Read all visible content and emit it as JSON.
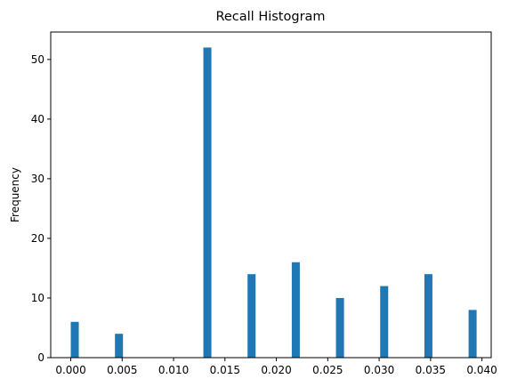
{
  "chart_data": {
    "type": "bar",
    "title": "Recall Histogram",
    "xlabel": "",
    "ylabel": "Frequency",
    "xlim": [
      -0.00195,
      0.0409
    ],
    "ylim": [
      0,
      54.6
    ],
    "x_ticks": [
      "0.000",
      "0.005",
      "0.010",
      "0.015",
      "0.020",
      "0.025",
      "0.030",
      "0.035",
      "0.040"
    ],
    "x_tick_values": [
      0,
      0.005,
      0.01,
      0.015,
      0.02,
      0.025,
      0.03,
      0.035,
      0.04
    ],
    "y_ticks": [
      "0",
      "10",
      "20",
      "30",
      "40",
      "50"
    ],
    "y_tick_values": [
      0,
      10,
      20,
      30,
      40,
      50
    ],
    "bin_width": 0.00078,
    "bins": [
      {
        "x": 0.0,
        "value": 6
      },
      {
        "x": 0.0043,
        "value": 4
      },
      {
        "x": 0.0129,
        "value": 52
      },
      {
        "x": 0.0172,
        "value": 14
      },
      {
        "x": 0.0215,
        "value": 16
      },
      {
        "x": 0.0258,
        "value": 10
      },
      {
        "x": 0.0301,
        "value": 12
      },
      {
        "x": 0.0344,
        "value": 14
      },
      {
        "x": 0.0387,
        "value": 8
      }
    ],
    "grid": false,
    "legend": "none",
    "color": "#1f77b4"
  }
}
